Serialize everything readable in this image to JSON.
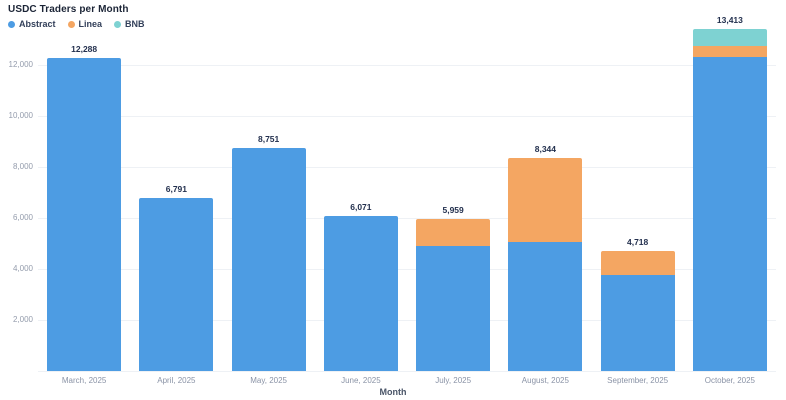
{
  "title": "USDC Traders per Month",
  "xlabel": "Month",
  "legend": [
    {
      "label": "Abstract",
      "color": "#4D9CE3"
    },
    {
      "label": "Linea",
      "color": "#F4A662"
    },
    {
      "label": "BNB",
      "color": "#7ED2D2"
    }
  ],
  "chart_data": {
    "type": "bar",
    "stacked": true,
    "title": "USDC Traders per Month",
    "xlabel": "Month",
    "ylabel": "",
    "categories": [
      "March, 2025",
      "April, 2025",
      "May, 2025",
      "June, 2025",
      "July, 2025",
      "August, 2025",
      "September, 2025",
      "October, 2025"
    ],
    "series": [
      {
        "name": "Abstract",
        "color": "#4D9CE3",
        "values": [
          12288,
          6791,
          8751,
          6071,
          4900,
          5050,
          3750,
          12300
        ]
      },
      {
        "name": "Linea",
        "color": "#F4A662",
        "values": [
          0,
          0,
          0,
          0,
          1059,
          3294,
          968,
          450
        ]
      },
      {
        "name": "BNB",
        "color": "#7ED2D2",
        "values": [
          0,
          0,
          0,
          0,
          0,
          0,
          0,
          663
        ]
      }
    ],
    "totals": [
      "12,288",
      "6,791",
      "8,751",
      "6,071",
      "5,959",
      "8,344",
      "4,718",
      "13,413"
    ],
    "ylim": [
      0,
      14000
    ],
    "yticks": [
      "2,000",
      "4,000",
      "6,000",
      "8,000",
      "10,000",
      "12,000"
    ],
    "grid": true,
    "legend_position": "top-left"
  }
}
